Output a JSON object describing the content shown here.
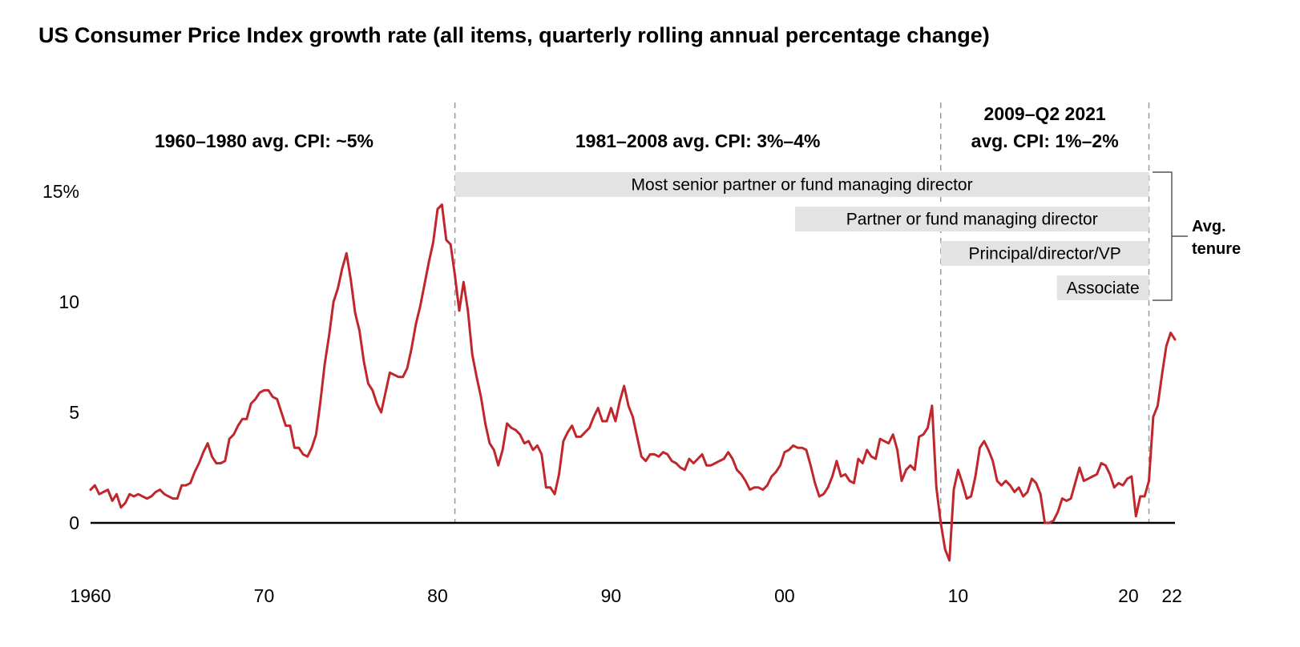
{
  "chart_data": {
    "type": "line",
    "title": "US Consumer Price Index growth rate (all items, quarterly rolling annual percentage change)",
    "xlabel": "",
    "ylabel": "",
    "xlim": [
      1960,
      2022.5
    ],
    "ylim": [
      -2,
      15
    ],
    "grid": false,
    "y_ticks": [
      {
        "value": 0,
        "label": "0"
      },
      {
        "value": 5,
        "label": "5"
      },
      {
        "value": 10,
        "label": "10"
      },
      {
        "value": 15,
        "label": "15%"
      }
    ],
    "x_ticks": [
      {
        "value": 1960,
        "label": "1960"
      },
      {
        "value": 1970,
        "label": "70"
      },
      {
        "value": 1980,
        "label": "80"
      },
      {
        "value": 1990,
        "label": "90"
      },
      {
        "value": 2000,
        "label": "00"
      },
      {
        "value": 2010,
        "label": "10"
      },
      {
        "value": 2020,
        "label": "20"
      },
      {
        "value": 2022,
        "label": "22"
      }
    ],
    "dividers": [
      1981,
      2009,
      2021
    ],
    "era_labels": [
      {
        "lines": [
          "1960–1980 avg. CPI: ~5%"
        ],
        "x": 1970
      },
      {
        "lines": [
          "1981–2008 avg. CPI: 3%–4%"
        ],
        "x": 1995
      },
      {
        "lines": [
          "2009–Q2 2021",
          "avg. CPI: 1%–2%"
        ],
        "x": 2015
      }
    ],
    "tenure_bands": [
      {
        "label": "Most senior partner or fund managing director",
        "start": 1981,
        "end": 2021
      },
      {
        "label": "Partner or fund managing director",
        "start": 2000.6,
        "end": 2021
      },
      {
        "label": "Principal/director/VP",
        "start": 2009,
        "end": 2021
      },
      {
        "label": "Associate",
        "start": 2015.7,
        "end": 2021
      }
    ],
    "tenure_label": [
      "Avg.",
      "tenure"
    ],
    "series": [
      {
        "color": "#c0272d",
        "points": [
          [
            1960.0,
            1.5
          ],
          [
            1960.25,
            1.7
          ],
          [
            1960.5,
            1.3
          ],
          [
            1960.75,
            1.4
          ],
          [
            1961.0,
            1.5
          ],
          [
            1961.25,
            1.0
          ],
          [
            1961.5,
            1.3
          ],
          [
            1961.75,
            0.7
          ],
          [
            1962.0,
            0.9
          ],
          [
            1962.25,
            1.3
          ],
          [
            1962.5,
            1.2
          ],
          [
            1962.75,
            1.3
          ],
          [
            1963.0,
            1.2
          ],
          [
            1963.25,
            1.1
          ],
          [
            1963.5,
            1.2
          ],
          [
            1963.75,
            1.4
          ],
          [
            1964.0,
            1.5
          ],
          [
            1964.25,
            1.3
          ],
          [
            1964.5,
            1.2
          ],
          [
            1964.75,
            1.1
          ],
          [
            1965.0,
            1.1
          ],
          [
            1965.25,
            1.7
          ],
          [
            1965.5,
            1.7
          ],
          [
            1965.75,
            1.8
          ],
          [
            1966.0,
            2.3
          ],
          [
            1966.25,
            2.7
          ],
          [
            1966.5,
            3.2
          ],
          [
            1966.75,
            3.6
          ],
          [
            1967.0,
            3.0
          ],
          [
            1967.25,
            2.7
          ],
          [
            1967.5,
            2.7
          ],
          [
            1967.75,
            2.8
          ],
          [
            1968.0,
            3.8
          ],
          [
            1968.25,
            4.0
          ],
          [
            1968.5,
            4.4
          ],
          [
            1968.75,
            4.7
          ],
          [
            1969.0,
            4.7
          ],
          [
            1969.25,
            5.4
          ],
          [
            1969.5,
            5.6
          ],
          [
            1969.75,
            5.9
          ],
          [
            1970.0,
            6.0
          ],
          [
            1970.25,
            6.0
          ],
          [
            1970.5,
            5.7
          ],
          [
            1970.75,
            5.6
          ],
          [
            1971.0,
            5.0
          ],
          [
            1971.25,
            4.4
          ],
          [
            1971.5,
            4.4
          ],
          [
            1971.75,
            3.4
          ],
          [
            1972.0,
            3.4
          ],
          [
            1972.25,
            3.1
          ],
          [
            1972.5,
            3.0
          ],
          [
            1972.75,
            3.4
          ],
          [
            1973.0,
            4.0
          ],
          [
            1973.25,
            5.5
          ],
          [
            1973.5,
            7.2
          ],
          [
            1973.75,
            8.5
          ],
          [
            1974.0,
            10.0
          ],
          [
            1974.25,
            10.6
          ],
          [
            1974.5,
            11.5
          ],
          [
            1974.75,
            12.2
          ],
          [
            1975.0,
            11.0
          ],
          [
            1975.25,
            9.5
          ],
          [
            1975.5,
            8.7
          ],
          [
            1975.75,
            7.3
          ],
          [
            1976.0,
            6.3
          ],
          [
            1976.25,
            6.0
          ],
          [
            1976.5,
            5.4
          ],
          [
            1976.75,
            5.0
          ],
          [
            1977.0,
            5.9
          ],
          [
            1977.25,
            6.8
          ],
          [
            1977.5,
            6.7
          ],
          [
            1977.75,
            6.6
          ],
          [
            1978.0,
            6.6
          ],
          [
            1978.25,
            7.0
          ],
          [
            1978.5,
            7.9
          ],
          [
            1978.75,
            9.0
          ],
          [
            1979.0,
            9.8
          ],
          [
            1979.25,
            10.8
          ],
          [
            1979.5,
            11.8
          ],
          [
            1979.75,
            12.7
          ],
          [
            1980.0,
            14.2
          ],
          [
            1980.25,
            14.4
          ],
          [
            1980.5,
            12.8
          ],
          [
            1980.75,
            12.6
          ],
          [
            1981.0,
            11.2
          ],
          [
            1981.25,
            9.6
          ],
          [
            1981.5,
            10.9
          ],
          [
            1981.75,
            9.6
          ],
          [
            1982.0,
            7.6
          ],
          [
            1982.25,
            6.6
          ],
          [
            1982.5,
            5.7
          ],
          [
            1982.75,
            4.5
          ],
          [
            1983.0,
            3.6
          ],
          [
            1983.25,
            3.3
          ],
          [
            1983.5,
            2.6
          ],
          [
            1983.75,
            3.3
          ],
          [
            1984.0,
            4.5
          ],
          [
            1984.25,
            4.3
          ],
          [
            1984.5,
            4.2
          ],
          [
            1984.75,
            4.0
          ],
          [
            1985.0,
            3.6
          ],
          [
            1985.25,
            3.7
          ],
          [
            1985.5,
            3.3
          ],
          [
            1985.75,
            3.5
          ],
          [
            1986.0,
            3.1
          ],
          [
            1986.25,
            1.6
          ],
          [
            1986.5,
            1.6
          ],
          [
            1986.75,
            1.3
          ],
          [
            1987.0,
            2.2
          ],
          [
            1987.25,
            3.7
          ],
          [
            1987.5,
            4.1
          ],
          [
            1987.75,
            4.4
          ],
          [
            1988.0,
            3.9
          ],
          [
            1988.25,
            3.9
          ],
          [
            1988.5,
            4.1
          ],
          [
            1988.75,
            4.3
          ],
          [
            1989.0,
            4.8
          ],
          [
            1989.25,
            5.2
          ],
          [
            1989.5,
            4.6
          ],
          [
            1989.75,
            4.6
          ],
          [
            1990.0,
            5.2
          ],
          [
            1990.25,
            4.6
          ],
          [
            1990.5,
            5.5
          ],
          [
            1990.75,
            6.2
          ],
          [
            1991.0,
            5.3
          ],
          [
            1991.25,
            4.8
          ],
          [
            1991.5,
            3.9
          ],
          [
            1991.75,
            3.0
          ],
          [
            1992.0,
            2.8
          ],
          [
            1992.25,
            3.1
          ],
          [
            1992.5,
            3.1
          ],
          [
            1992.75,
            3.0
          ],
          [
            1993.0,
            3.2
          ],
          [
            1993.25,
            3.1
          ],
          [
            1993.5,
            2.8
          ],
          [
            1993.75,
            2.7
          ],
          [
            1994.0,
            2.5
          ],
          [
            1994.25,
            2.4
          ],
          [
            1994.5,
            2.9
          ],
          [
            1994.75,
            2.7
          ],
          [
            1995.0,
            2.9
          ],
          [
            1995.25,
            3.1
          ],
          [
            1995.5,
            2.6
          ],
          [
            1995.75,
            2.6
          ],
          [
            1996.0,
            2.7
          ],
          [
            1996.25,
            2.8
          ],
          [
            1996.5,
            2.9
          ],
          [
            1996.75,
            3.2
          ],
          [
            1997.0,
            2.9
          ],
          [
            1997.25,
            2.4
          ],
          [
            1997.5,
            2.2
          ],
          [
            1997.75,
            1.9
          ],
          [
            1998.0,
            1.5
          ],
          [
            1998.25,
            1.6
          ],
          [
            1998.5,
            1.6
          ],
          [
            1998.75,
            1.5
          ],
          [
            1999.0,
            1.7
          ],
          [
            1999.25,
            2.1
          ],
          [
            1999.5,
            2.3
          ],
          [
            1999.75,
            2.6
          ],
          [
            2000.0,
            3.2
          ],
          [
            2000.25,
            3.3
          ],
          [
            2000.5,
            3.5
          ],
          [
            2000.75,
            3.4
          ],
          [
            2001.0,
            3.4
          ],
          [
            2001.25,
            3.3
          ],
          [
            2001.5,
            2.6
          ],
          [
            2001.75,
            1.8
          ],
          [
            2002.0,
            1.2
          ],
          [
            2002.25,
            1.3
          ],
          [
            2002.5,
            1.6
          ],
          [
            2002.75,
            2.1
          ],
          [
            2003.0,
            2.8
          ],
          [
            2003.25,
            2.1
          ],
          [
            2003.5,
            2.2
          ],
          [
            2003.75,
            1.9
          ],
          [
            2004.0,
            1.8
          ],
          [
            2004.25,
            2.9
          ],
          [
            2004.5,
            2.7
          ],
          [
            2004.75,
            3.3
          ],
          [
            2005.0,
            3.0
          ],
          [
            2005.25,
            2.9
          ],
          [
            2005.5,
            3.8
          ],
          [
            2005.75,
            3.7
          ],
          [
            2006.0,
            3.6
          ],
          [
            2006.25,
            4.0
          ],
          [
            2006.5,
            3.3
          ],
          [
            2006.75,
            1.9
          ],
          [
            2007.0,
            2.4
          ],
          [
            2007.25,
            2.6
          ],
          [
            2007.5,
            2.4
          ],
          [
            2007.75,
            3.9
          ],
          [
            2008.0,
            4.0
          ],
          [
            2008.25,
            4.3
          ],
          [
            2008.5,
            5.3
          ],
          [
            2008.75,
            1.6
          ],
          [
            2009.0,
            0.0
          ],
          [
            2009.25,
            -1.2
          ],
          [
            2009.5,
            -1.7
          ],
          [
            2009.75,
            1.5
          ],
          [
            2010.0,
            2.4
          ],
          [
            2010.25,
            1.8
          ],
          [
            2010.5,
            1.1
          ],
          [
            2010.75,
            1.2
          ],
          [
            2011.0,
            2.1
          ],
          [
            2011.25,
            3.4
          ],
          [
            2011.5,
            3.7
          ],
          [
            2011.75,
            3.3
          ],
          [
            2012.0,
            2.8
          ],
          [
            2012.25,
            1.9
          ],
          [
            2012.5,
            1.7
          ],
          [
            2012.75,
            1.9
          ],
          [
            2013.0,
            1.7
          ],
          [
            2013.25,
            1.4
          ],
          [
            2013.5,
            1.6
          ],
          [
            2013.75,
            1.2
          ],
          [
            2014.0,
            1.4
          ],
          [
            2014.25,
            2.0
          ],
          [
            2014.5,
            1.8
          ],
          [
            2014.75,
            1.3
          ],
          [
            2015.0,
            0.0
          ],
          [
            2015.25,
            0.0
          ],
          [
            2015.5,
            0.1
          ],
          [
            2015.75,
            0.5
          ],
          [
            2016.0,
            1.1
          ],
          [
            2016.25,
            1.0
          ],
          [
            2016.5,
            1.1
          ],
          [
            2016.75,
            1.8
          ],
          [
            2017.0,
            2.5
          ],
          [
            2017.25,
            1.9
          ],
          [
            2017.5,
            2.0
          ],
          [
            2017.75,
            2.1
          ],
          [
            2018.0,
            2.2
          ],
          [
            2018.25,
            2.7
          ],
          [
            2018.5,
            2.6
          ],
          [
            2018.75,
            2.2
          ],
          [
            2019.0,
            1.6
          ],
          [
            2019.25,
            1.8
          ],
          [
            2019.5,
            1.7
          ],
          [
            2019.75,
            2.0
          ],
          [
            2020.0,
            2.1
          ],
          [
            2020.25,
            0.3
          ],
          [
            2020.5,
            1.2
          ],
          [
            2020.75,
            1.2
          ],
          [
            2021.0,
            1.9
          ],
          [
            2021.25,
            4.8
          ],
          [
            2021.5,
            5.3
          ],
          [
            2021.75,
            6.7
          ],
          [
            2022.0,
            8.0
          ],
          [
            2022.25,
            8.6
          ],
          [
            2022.5,
            8.3
          ]
        ]
      }
    ]
  }
}
